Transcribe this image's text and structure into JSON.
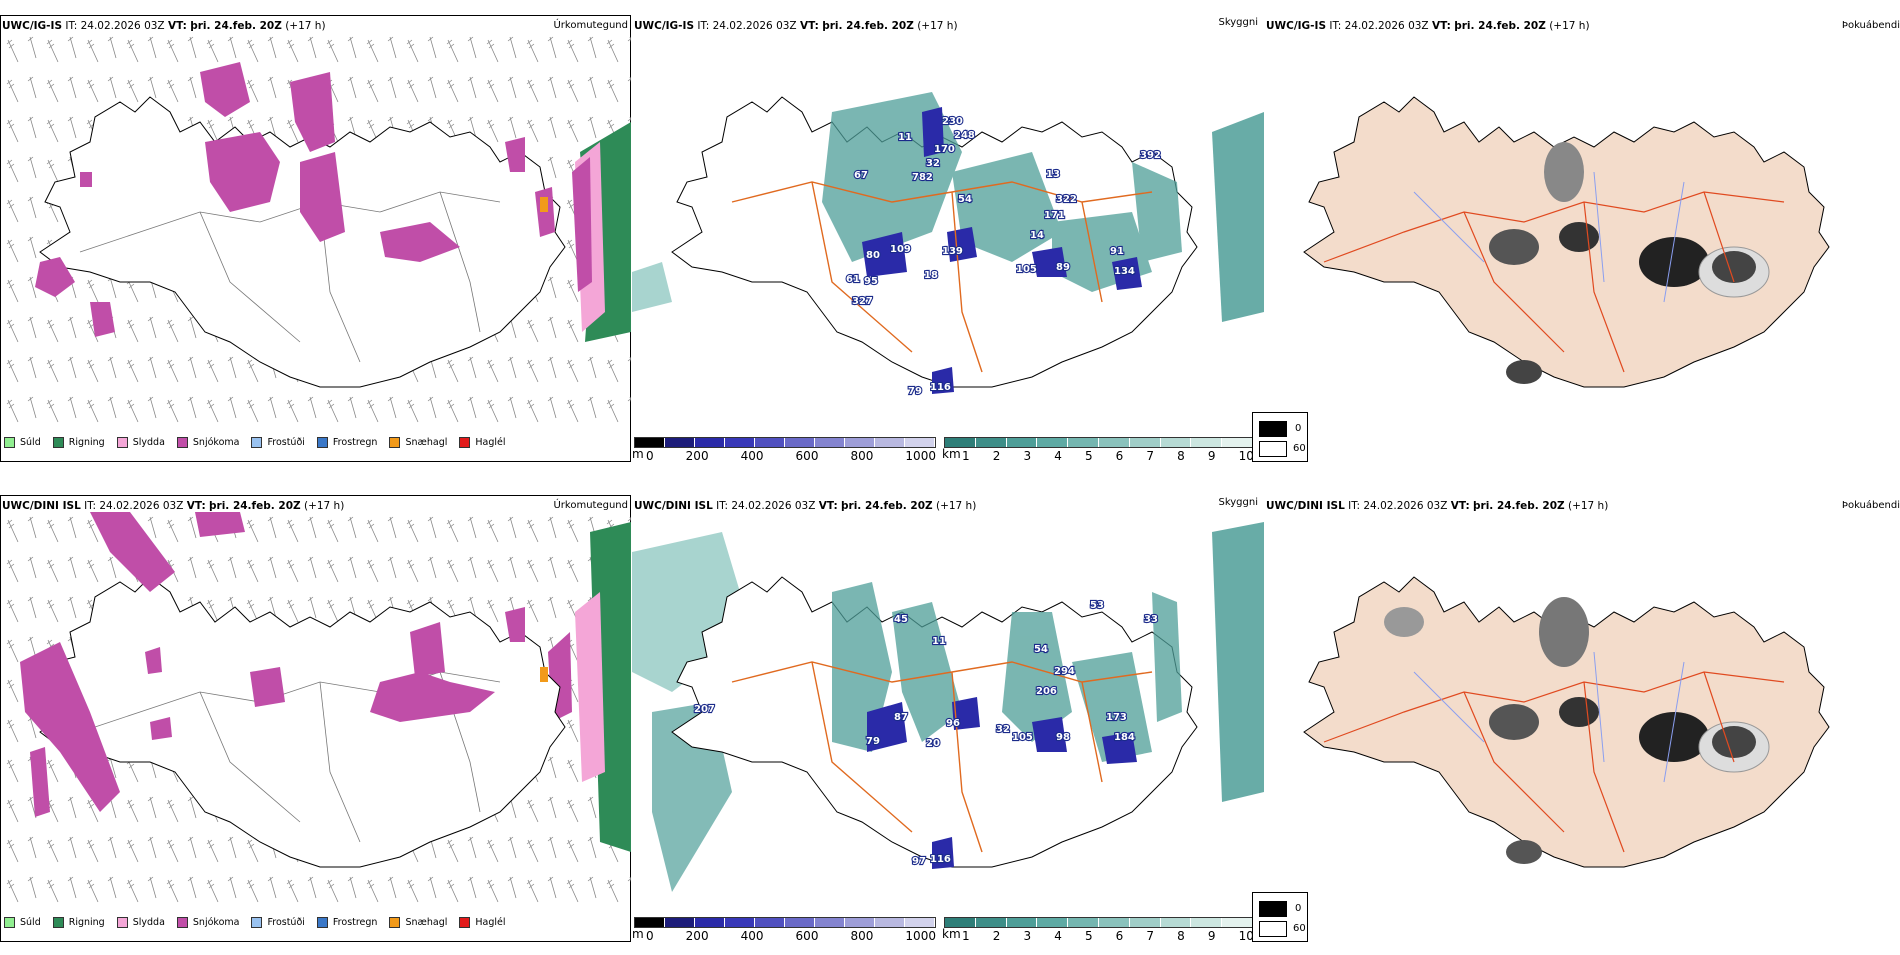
{
  "rows": [
    {
      "model": "UWC/IG-IS",
      "it_label": "IT:",
      "it_value": "24.02.2026 03Z",
      "vt_label": "VT:",
      "vt_value": "þri. 24.feb. 20Z",
      "lead": "(+17 h)",
      "p1_title": "Úrkomutegund",
      "p2_title": "Skyggni",
      "p3_title": "Þokuábendi",
      "snow_labels": [
        "230",
        "248",
        "170",
        "32",
        "782",
        "67",
        "11",
        "54",
        "13",
        "322",
        "171",
        "14",
        "109",
        "80",
        "139",
        "61",
        "95",
        "18",
        "327",
        "105",
        "89",
        "91",
        "134",
        "392",
        "116",
        "79"
      ]
    },
    {
      "model": "UWC/DINI ISL",
      "it_label": "IT:",
      "it_value": "24.02.2026 03Z",
      "vt_label": "VT:",
      "vt_value": "þri. 24.feb. 20Z",
      "lead": "(+17 h)",
      "p1_title": "Úrkomutegund",
      "p2_title": "Skyggni",
      "p3_title": "Þokuábendi",
      "snow_labels": [
        "45",
        "11",
        "53",
        "33",
        "294",
        "54",
        "206",
        "87",
        "96",
        "79",
        "20",
        "32",
        "105",
        "98",
        "173",
        "184",
        "207",
        "116",
        "97"
      ]
    }
  ],
  "precip_legend": [
    {
      "label": "Súld",
      "color": "#90ee90"
    },
    {
      "label": "Rigning",
      "color": "#2e8b57"
    },
    {
      "label": "Slydda",
      "color": "#f4a6d7"
    },
    {
      "label": "Snjókoma",
      "color": "#c04ea8"
    },
    {
      "label": "Frostúði",
      "color": "#99c2f0"
    },
    {
      "label": "Frostregn",
      "color": "#3a78c8"
    },
    {
      "label": "Snæhagl",
      "color": "#f29a1a"
    },
    {
      "label": "Haglél",
      "color": "#e21b1b"
    }
  ],
  "snow_scale": {
    "unit": "m",
    "ticks": [
      "0",
      "200",
      "400",
      "600",
      "800",
      "1000"
    ]
  },
  "vis_scale": {
    "unit": "km",
    "ticks": [
      "1",
      "2",
      "3",
      "4",
      "5",
      "6",
      "7",
      "8",
      "9",
      "10"
    ]
  },
  "fog_legend": {
    "low": "0",
    "high": "60"
  },
  "colors": {
    "snow": "#c04ea8",
    "sleet": "#f4a6d7",
    "rain": "#2e8b57",
    "ice": "#f29a1a",
    "vis_teal": "#4e9e98",
    "vis_light": "#a8d4cf",
    "snow_blue": "#2a2aa8",
    "land": "#f3dccb",
    "roads": "#e06a20",
    "rivers": "#8a9ef0",
    "fog_grey": "#555555"
  }
}
